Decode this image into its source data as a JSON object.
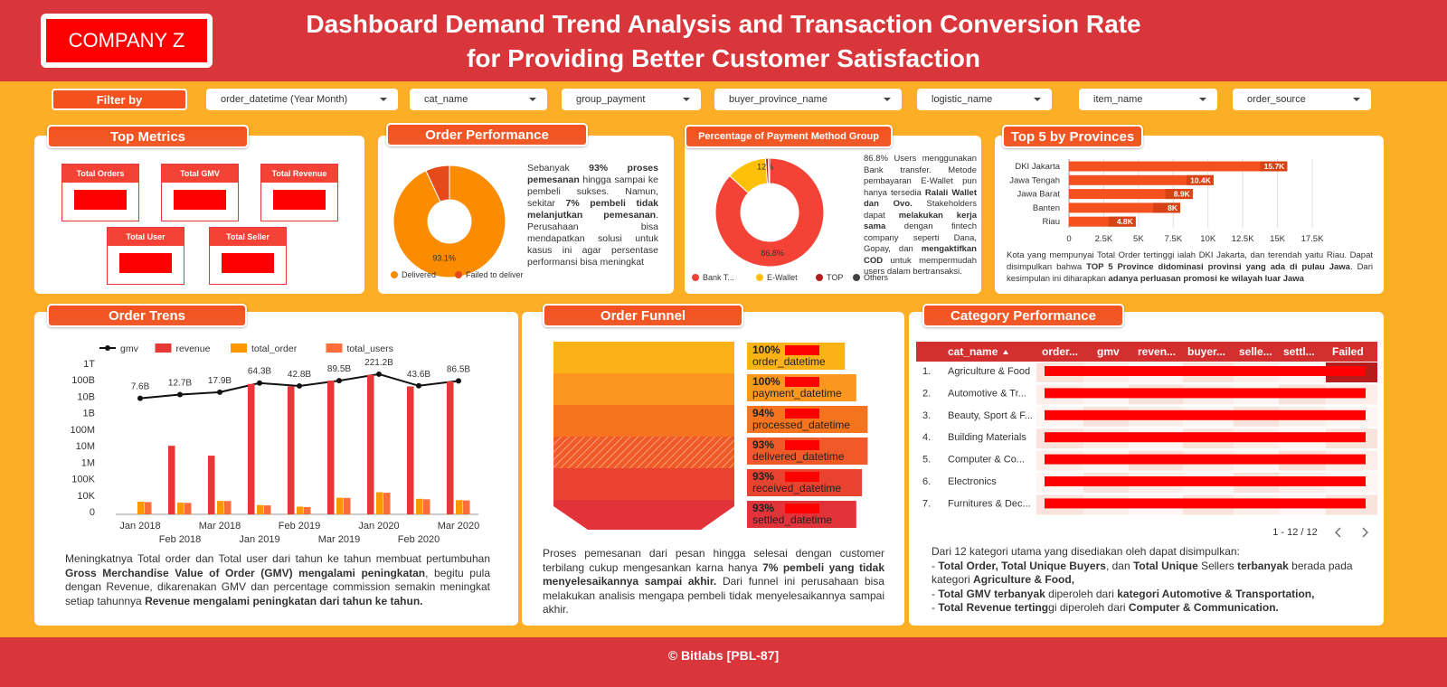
{
  "header": {
    "logo": "COMPANY Z",
    "title_lines": [
      "Dashboard Demand Trend Analysis and Transaction Conversion Rate",
      "for Providing Better Customer Satisfaction"
    ]
  },
  "filters": {
    "label": "Filter by",
    "options": [
      "order_datetime (Year Month)",
      "cat_name",
      "group_payment",
      "buyer_province_name",
      "logistic_name",
      "item_name",
      "order_source"
    ]
  },
  "top_metrics": {
    "title": "Top Metrics",
    "cards": [
      "Total Orders",
      "Total GMV",
      "Total Revenue",
      "Total User",
      "Total Seller"
    ]
  },
  "chart_data": [
    {
      "type": "pie",
      "title": "Order Performance",
      "categories": [
        "Delivered",
        "Failed to deliver"
      ],
      "values": [
        93.1,
        6.9
      ],
      "value_labels": [
        "93.1%",
        null
      ],
      "colors": [
        "#fb8c00",
        "#e64a19"
      ],
      "annotation": [
        [
          "Sebanyak ",
          {
            "text": "93% proses pemesanan",
            "bold": true
          },
          " hingga sampai ke pembeli sukses. Namun, sekitar ",
          {
            "text": "7% pembeli tidak melanjutkan pemesanan",
            "bold": true
          },
          ". Perusahaan bisa mendapatkan solusi untuk kasus ini agar persentase performansi bisa meningkat"
        ]
      ]
    },
    {
      "type": "pie",
      "title": "Percentage of Payment Method Group",
      "categories": [
        "Bank T...",
        "E-Wallet",
        "TOP",
        "Others"
      ],
      "values": [
        86.8,
        12,
        0.8,
        0.4
      ],
      "value_labels": [
        "86.8%",
        "12%",
        null,
        null
      ],
      "colors": [
        "#f44336",
        "#ffc107",
        "#b71c1c",
        "#424242"
      ],
      "annotation": [
        [
          "86.8% Users menggunakan Bank transfer. Metode pembayaran E-Wallet pun hanya tersedia ",
          {
            "text": "Ralali Wallet dan Ovo.",
            "bold": true
          },
          " Stakeholders dapat ",
          {
            "text": "melakukan kerja sama",
            "bold": true
          },
          " dengan fintech company seperti Dana, Gopay, dan ",
          {
            "text": "mengaktifkan COD",
            "bold": true
          },
          " untuk mempermudah users dalam bertransaksi."
        ]
      ]
    },
    {
      "type": "hbar",
      "title": "Top 5 by Provinces",
      "categories": [
        "DKI Jakarta",
        "Jawa Tengah",
        "Jawa Barat",
        "Banten",
        "Riau"
      ],
      "values": [
        15700,
        10400,
        8900,
        8000,
        4800
      ],
      "value_labels": [
        "15.7K",
        "10.4K",
        "8.9K",
        "8K",
        "4.8K"
      ],
      "color": "#f4511e",
      "xlim": [
        0,
        17500
      ],
      "xticks": [
        0,
        {
          "value": 2500,
          "label": "2.5K"
        },
        {
          "value": 5000,
          "label": "5K"
        },
        {
          "value": 7500,
          "label": "7.5K"
        },
        {
          "value": 10000,
          "label": "10K"
        },
        {
          "value": 12500,
          "label": "12.5K"
        },
        {
          "value": 15000,
          "label": "15K"
        },
        {
          "value": 17500,
          "label": "17.5K"
        }
      ],
      "grid": true,
      "annotation": [
        [
          "Kota yang mempunyai Total Order tertinggi ialah DKI Jakarta, dan terendah yaitu Riau. Dapat disimpulkan bahwa ",
          {
            "text": "TOP 5 Province didominasi provinsi yang ada di pulau Jawa",
            "bold": true
          },
          ". Dari kesimpulan ini diharapkan ",
          {
            "text": "adanya perluasan promosi ke wilayah luar Jawa",
            "bold": true
          }
        ]
      ]
    },
    {
      "type": "combo",
      "title": "Order Trens",
      "categories": [
        "Jan 2018",
        "Feb 2018",
        "Mar 2018",
        "Jan 2019",
        "Feb 2019",
        "Mar 2019",
        "Jan 2020",
        "Feb 2020",
        "Mar 2020"
      ],
      "log_scale": true,
      "ylim": [
        1000,
        1000000000000
      ],
      "yticks": [
        0,
        {
          "value": 10000,
          "label": "10K"
        },
        {
          "value": 100000,
          "label": "100K"
        },
        {
          "value": 1000000,
          "label": "1M"
        },
        {
          "value": 10000000,
          "label": "10M"
        },
        {
          "value": 100000000,
          "label": "100M"
        },
        {
          "value": 1000000000,
          "label": "1B"
        },
        {
          "value": 10000000000,
          "label": "10B"
        },
        {
          "value": 100000000000,
          "label": "100B"
        },
        {
          "value": 1000000000000,
          "label": "1T"
        }
      ],
      "legend": "top-left",
      "series": [
        {
          "name": "gmv",
          "kind": "line",
          "color": "#111111",
          "values": [
            7600000000,
            12700000000,
            17900000000,
            64300000000,
            42800000000,
            89500000000,
            221200000000,
            43600000000,
            86500000000
          ],
          "value_labels": [
            "7.6B",
            "12.7B",
            "17.9B",
            "64.3B",
            "42.8B",
            "89.5B",
            "221.2B",
            "43.6B",
            "86.5B"
          ]
        },
        {
          "name": "revenue",
          "kind": "bar",
          "color": "#e53935",
          "values": [
            null,
            10000000,
            2500000,
            56000000000,
            40000000000,
            90000000000,
            200000000000,
            40000000000,
            80000000000
          ]
        },
        {
          "name": "total_order",
          "kind": "bar",
          "color": "#ff9800",
          "values": [
            4000,
            3500,
            4500,
            2500,
            2000,
            7000,
            15000,
            6000,
            5000
          ]
        },
        {
          "name": "total_users",
          "kind": "bar",
          "color": "#ff6d3a",
          "values": [
            3800,
            3400,
            4400,
            2400,
            1900,
            6800,
            14000,
            5600,
            4800
          ]
        }
      ],
      "annotation": [
        [
          "Meningkatnya Total order dan Total user dari tahun ke tahun membuat pertumbuhan ",
          {
            "text": "Gross Merchandise Value of Order (GMV) mengalami peningkatan",
            "bold": true
          },
          ", begitu pula dengan Revenue, dikarenakan GMV dan percentage commission semakin meningkat setiap tahunnya ",
          {
            "text": "Revenue mengalami peningkatan dari tahun ke tahun.",
            "bold": true
          }
        ]
      ]
    },
    {
      "type": "funnel",
      "title": "Order Funnel",
      "categories": [
        "order_datetime",
        "payment_datetime",
        "processed_datetime",
        "delivered_datetime",
        "received_datetime",
        "settled_datetime"
      ],
      "values": [
        100,
        100,
        94,
        93,
        93,
        93
      ],
      "value_labels": [
        "100%",
        "100%",
        "94%",
        "93%",
        "93%",
        "93%"
      ],
      "colors": [
        "#fbb217",
        "#fb961f",
        "#f7741f",
        "#f05a28",
        "#e8432e",
        "#e2323a"
      ],
      "annotation": [
        [
          "Proses pemesanan dari pesan hingga selesai dengan customer terbilang cukup mengesankan karna hanya ",
          {
            "text": "7% pembeli yang tidak menyelesaikannya sampai akhir.",
            "bold": true
          },
          "  Dari funnel ini perusahaan bisa melakukan analisis mengapa pembeli tidak menyelesaikannya sampai akhir."
        ]
      ]
    }
  ],
  "category_table": {
    "title": "Category Performance",
    "columns": [
      "cat_name",
      "order...",
      "gmv",
      "reven...",
      "buyer...",
      "selle...",
      "settl...",
      "Failed"
    ],
    "rows": [
      [
        "1.",
        "Agriculture & Food"
      ],
      [
        "2.",
        "Automotive & Tr..."
      ],
      [
        "3.",
        "Beauty, Sport & F..."
      ],
      [
        "4.",
        "Building Materials"
      ],
      [
        "5.",
        "Computer & Co..."
      ],
      [
        "6.",
        "Electronics"
      ],
      [
        "7.",
        "Furnitures & Dec..."
      ]
    ],
    "pagination": "1 - 12 / 12",
    "note": [
      [
        "Dari 12 kategori utama yang disediakan oleh dapat disimpulkan:"
      ],
      [
        "- ",
        {
          "text": "Total Order, Total Unique Buyers",
          "bold": true
        },
        ", dan ",
        {
          "text": "Total Unique",
          "bold": true
        },
        " Sellers ",
        {
          "text": "terbanyak",
          "bold": true
        },
        " berada pada kategori ",
        {
          "text": "Agriculture & Food,",
          "bold": true
        }
      ],
      [
        "- ",
        {
          "text": "Total GMV terbanyak",
          "bold": true
        },
        " diperoleh dari ",
        {
          "text": "kategori Automotive & Transportation,",
          "bold": true
        }
      ],
      [
        "- ",
        {
          "text": "Total Revenue terting",
          "bold": true
        },
        "gi diperoleh dari ",
        {
          "text": "Computer & Communication.",
          "bold": true
        }
      ]
    ]
  },
  "footer": "© Bitlabs [PBL-87]"
}
